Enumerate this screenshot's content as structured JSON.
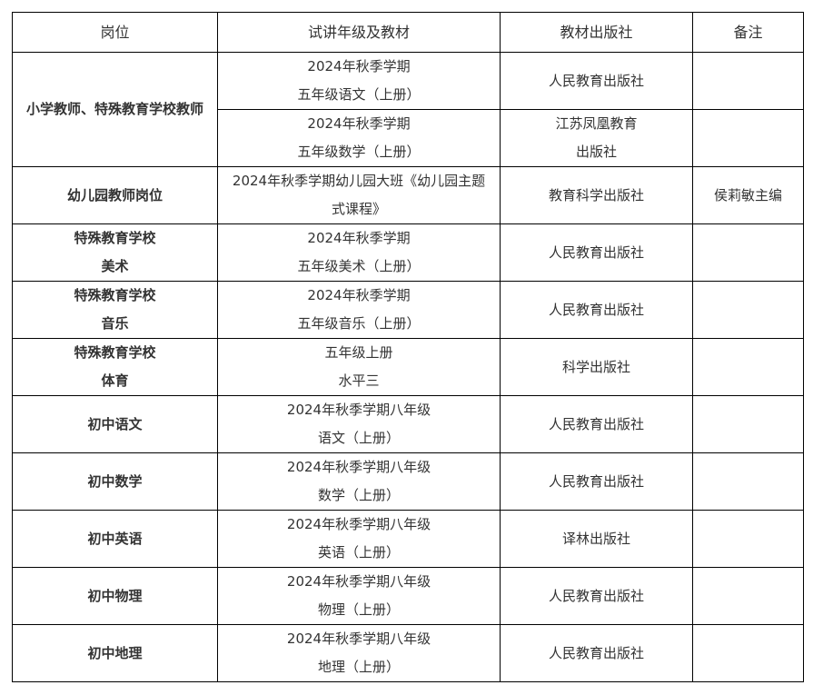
{
  "headers": [
    "岗位",
    "试讲年级及教材",
    "教材出版社",
    "备注"
  ],
  "rows": [
    {
      "position": "小学教师、特殊教育学校教师",
      "sub": [
        {
          "material": [
            "2024年秋季学期",
            "五年级语文（上册）"
          ],
          "publisher": [
            "人民教育出版社"
          ],
          "note": ""
        },
        {
          "material": [
            "2024年秋季学期",
            "五年级数学（上册）"
          ],
          "publisher": [
            "江苏凤凰教育",
            "出版社"
          ],
          "note": ""
        }
      ]
    },
    {
      "position": [
        "幼儿园教师岗位"
      ],
      "material": [
        "2024年秋季学期幼儿园大班《幼儿园主题",
        "式课程》"
      ],
      "publisher": [
        "教育科学出版社"
      ],
      "note": "侯莉敏主编"
    },
    {
      "position": [
        "特殊教育学校",
        "美术"
      ],
      "material": [
        "2024年秋季学期",
        "五年级美术（上册）"
      ],
      "publisher": [
        "人民教育出版社"
      ],
      "note": ""
    },
    {
      "position": [
        "特殊教育学校",
        "音乐"
      ],
      "material": [
        "2024年秋季学期",
        "五年级音乐（上册）"
      ],
      "publisher": [
        "人民教育出版社"
      ],
      "note": ""
    },
    {
      "position": [
        "特殊教育学校",
        "体育"
      ],
      "material": [
        "五年级上册",
        "水平三"
      ],
      "publisher": [
        "科学出版社"
      ],
      "note": ""
    },
    {
      "position": [
        "初中语文"
      ],
      "material": [
        "2024年秋季学期八年级",
        "语文（上册）"
      ],
      "publisher": [
        "人民教育出版社"
      ],
      "note": ""
    },
    {
      "position": [
        "初中数学"
      ],
      "material": [
        "2024年秋季学期八年级",
        "数学（上册）"
      ],
      "publisher": [
        "人民教育出版社"
      ],
      "note": ""
    },
    {
      "position": [
        "初中英语"
      ],
      "material": [
        "2024年秋季学期八年级",
        "英语（上册）"
      ],
      "publisher": [
        "译林出版社"
      ],
      "note": ""
    },
    {
      "position": [
        "初中物理"
      ],
      "material": [
        "2024年秋季学期八年级",
        "物理（上册）"
      ],
      "publisher": [
        "人民教育出版社"
      ],
      "note": ""
    },
    {
      "position": [
        "初中地理"
      ],
      "material": [
        "2024年秋季学期八年级",
        "地理（上册）"
      ],
      "publisher": [
        "人民教育出版社"
      ],
      "note": ""
    }
  ]
}
